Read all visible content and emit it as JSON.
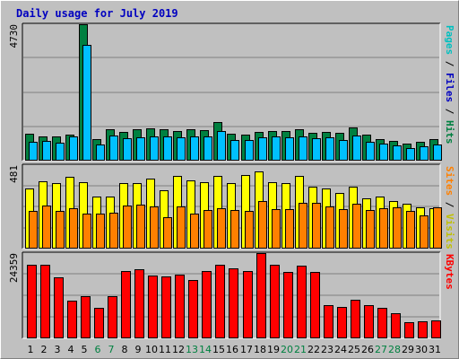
{
  "chart_data": {
    "type": "bar",
    "title": "Daily usage for July 2019",
    "categories": [
      "1",
      "2",
      "3",
      "4",
      "5",
      "6",
      "7",
      "8",
      "9",
      "10",
      "11",
      "12",
      "13",
      "14",
      "15",
      "16",
      "17",
      "18",
      "19",
      "20",
      "21",
      "22",
      "23",
      "24",
      "25",
      "26",
      "27",
      "28",
      "29",
      "30",
      "31"
    ],
    "weekend_days": [
      "6",
      "7",
      "13",
      "14",
      "20",
      "21",
      "27",
      "28"
    ],
    "panels": [
      {
        "name": "pages-files-hits",
        "ymax": 4730,
        "ymax_label": "4730",
        "series": [
          {
            "name": "Hits",
            "color": "#008040",
            "values": [
              900,
              800,
              830,
              880,
              4730,
              720,
              1050,
              980,
              1080,
              1100,
              1060,
              1000,
              1080,
              1040,
              1320,
              900,
              880,
              960,
              1010,
              1000,
              1050,
              950,
              980,
              940,
              1120,
              870,
              720,
              660,
              560,
              620,
              730
            ]
          },
          {
            "name": "Files",
            "color": "#00c0ff",
            "values": [
              620,
              650,
              580,
              800,
              4000,
              530,
              860,
              760,
              790,
              800,
              830,
              770,
              820,
              800,
              1000,
              700,
              680,
              780,
              810,
              790,
              800,
              740,
              770,
              690,
              850,
              620,
              560,
              500,
              400,
              470,
              530
            ]
          },
          {
            "name": "Pages",
            "color": "#00c0c0",
            "values": [],
            "legend_only": true
          }
        ],
        "legend": [
          {
            "text": "Pages",
            "color": "#00c0c0"
          },
          {
            "text": " / ",
            "color": "#000000"
          },
          {
            "text": "Files",
            "color": "#0000c0"
          },
          {
            "text": " / ",
            "color": "#000000"
          },
          {
            "text": "Hits",
            "color": "#008040"
          }
        ]
      },
      {
        "name": "visits-sites",
        "ymax": 481,
        "ymax_label": "481",
        "series": [
          {
            "name": "Visits",
            "color": "#ffff00",
            "values": [
              345,
              385,
              375,
              415,
              380,
              300,
              300,
              375,
              375,
              400,
              335,
              420,
              390,
              380,
              420,
              375,
              425,
              445,
              380,
              375,
              420,
              355,
              345,
              320,
              355,
              290,
              300,
              270,
              255,
              235,
              230
            ]
          },
          {
            "name": "Sites",
            "color": "#ff8000",
            "values": [
              215,
              245,
              215,
              230,
              200,
              200,
              205,
              245,
              250,
              240,
              180,
              240,
              200,
              220,
              230,
              220,
              215,
              270,
              225,
              225,
              260,
              260,
              240,
              225,
              255,
              220,
              230,
              235,
              215,
              190,
              235
            ]
          }
        ],
        "legend": [
          {
            "text": "Sites",
            "color": "#ff8000"
          },
          {
            "text": " / ",
            "color": "#000000"
          },
          {
            "text": "Visits",
            "color": "#c0c000"
          }
        ]
      },
      {
        "name": "kbytes",
        "ymax": 24359,
        "ymax_label": "24359",
        "series": [
          {
            "name": "KBytes",
            "color": "#ff0000",
            "values": [
              20900,
              21100,
              17400,
              10700,
              12000,
              8600,
              12000,
              19100,
              19800,
              18000,
              17700,
              18100,
              16600,
              19100,
              21100,
              20000,
              19100,
              24300,
              21100,
              19000,
              20700,
              18800,
              9400,
              8800,
              10900,
              9400,
              8600,
              7000,
              4500,
              4700,
              5000
            ]
          }
        ],
        "legend": [
          {
            "text": "KBytes",
            "color": "#ff0000"
          }
        ]
      }
    ],
    "grid": true
  }
}
